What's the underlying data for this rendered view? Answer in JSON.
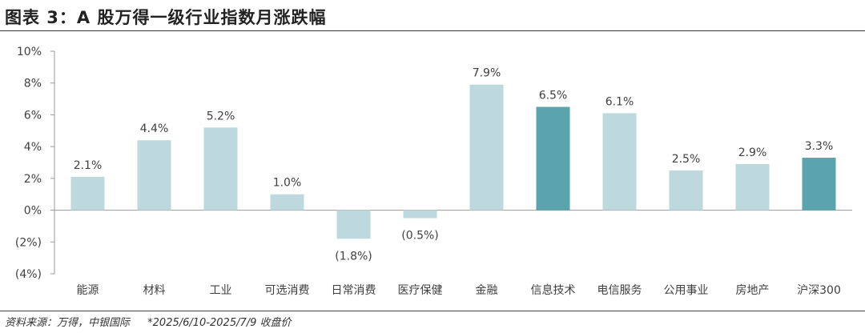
{
  "header": {
    "title": "图表 3：A 股万得一级行业指数月涨跌幅"
  },
  "footer": {
    "source": "资料来源：万得，中银国际",
    "note": "*2025/6/10-2025/7/9 收盘价"
  },
  "colors": {
    "bar_light": "#bdd9de",
    "bar_dark": "#5ba3ad",
    "axis": "#999999",
    "text": "#404040"
  },
  "chart_data": {
    "type": "bar",
    "title": "A 股万得一级行业指数月涨跌幅",
    "categories": [
      "能源",
      "材料",
      "工业",
      "可选消费",
      "日常消费",
      "医疗保健",
      "金融",
      "信息技术",
      "电信服务",
      "公用事业",
      "房地产",
      "沪深300"
    ],
    "values": [
      2.1,
      4.4,
      5.2,
      1.0,
      -1.8,
      -0.5,
      7.9,
      6.5,
      6.1,
      2.5,
      2.9,
      3.3
    ],
    "value_labels": [
      "2.1%",
      "4.4%",
      "5.2%",
      "1.0%",
      "(1.8%)",
      "(0.5%)",
      "7.9%",
      "6.5%",
      "6.1%",
      "2.5%",
      "2.9%",
      "3.3%"
    ],
    "highlighted": [
      "信息技术",
      "沪深300"
    ],
    "ylim": [
      -4,
      10
    ],
    "yticks": [
      10,
      8,
      6,
      4,
      2,
      0,
      -2,
      -4
    ],
    "ytick_labels": [
      "10%",
      "8%",
      "6%",
      "4%",
      "2%",
      "0%",
      "(2%)",
      "(4%)"
    ],
    "xlabel": "",
    "ylabel": "",
    "grid": false,
    "legend": "none"
  }
}
